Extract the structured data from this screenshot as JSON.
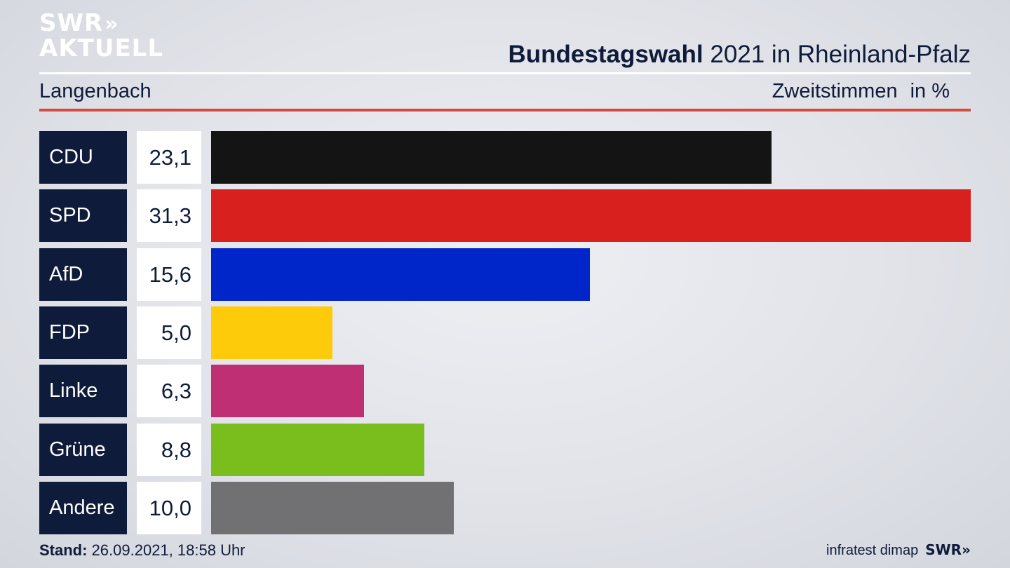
{
  "brand": {
    "logo_line1": "SWR",
    "logo_chevrons": "»",
    "logo_line2": "AKTUELL"
  },
  "header": {
    "title_bold": "Bundestagswahl",
    "title_rest": " 2021 in Rheinland-Pfalz",
    "location": "Langenbach",
    "measure": "Zweitstimmen",
    "unit": "in %"
  },
  "chart_data": {
    "type": "bar",
    "orientation": "horizontal",
    "title": "Bundestagswahl 2021 in Rheinland-Pfalz",
    "subtitle": "Langenbach",
    "measure": "Zweitstimmen",
    "unit": "in %",
    "categories": [
      "CDU",
      "SPD",
      "AfD",
      "FDP",
      "Linke",
      "Grüne",
      "Andere"
    ],
    "values": [
      23.1,
      31.3,
      15.6,
      5.0,
      6.3,
      8.8,
      10.0
    ],
    "value_labels": [
      "23,1",
      "31,3",
      "15,6",
      "5,0",
      "6,3",
      "8,8",
      "10,0"
    ],
    "colors": [
      "#141414",
      "#d8201f",
      "#0025c9",
      "#fecb0a",
      "#be2f73",
      "#79be1d",
      "#717173"
    ]
  },
  "footer": {
    "stand_label": "Stand:",
    "stand_value": " 26.09.2021, 18:58 Uhr",
    "source": "infratest dimap",
    "brand": "SWR»"
  }
}
